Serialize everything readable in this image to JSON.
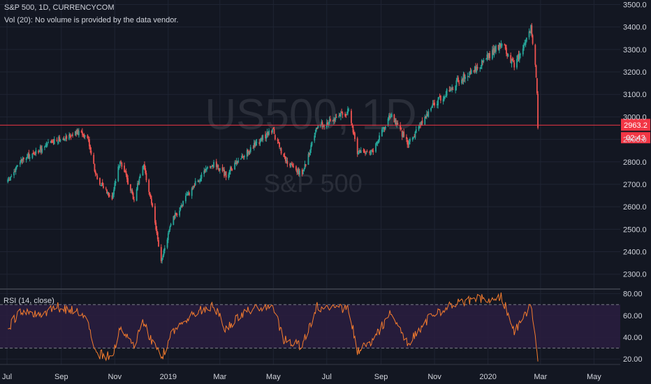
{
  "colors": {
    "background": "#131722",
    "grid": "#1f2433",
    "text": "#d1d4dc",
    "up": "#26a69a",
    "down": "#ef5350",
    "price_line": "#f23645",
    "rsi_line": "#f57c2e",
    "rsi_band": "#2a1d3f",
    "rsi_band_border": "#787b86",
    "watermark": "#2a2e39"
  },
  "header": {
    "title": "S&P 500, 1D, CURRENCYCOM",
    "volume_note": "Vol (20): No volume is provided by the data vendor."
  },
  "watermark": {
    "symbol": "US500, 1D",
    "name": "S&P 500"
  },
  "price_badge": {
    "value": "2963.2",
    "countdown": "02:43"
  },
  "rsi_panel": {
    "label": "RSI (14, close)"
  },
  "chart_data": [
    {
      "type": "candlestick",
      "title": "S&P 500, 1D, CURRENCYCOM",
      "ylim": [
        2240,
        3520
      ],
      "y_ticks": [
        "2300.0",
        "2400.0",
        "2500.0",
        "2600.0",
        "2700.0",
        "2800.0",
        "2900.0",
        "3000.0",
        "3100.0",
        "3200.0",
        "3300.0",
        "3400.0",
        "3500.0"
      ],
      "x_ticks": [
        "Jul",
        "Sep",
        "Nov",
        "2019",
        "Mar",
        "May",
        "Jul",
        "Sep",
        "Nov",
        "2020",
        "Mar",
        "May"
      ],
      "current_price": 2963.2,
      "series": [
        {
          "points": [
            [
              "2018-07-02",
              2710
            ],
            [
              "2018-07-16",
              2800
            ],
            [
              "2018-08-06",
              2850
            ],
            [
              "2018-08-27",
              2900
            ],
            [
              "2018-09-20",
              2930
            ],
            [
              "2018-10-01",
              2915
            ],
            [
              "2018-10-11",
              2730
            ],
            [
              "2018-10-29",
              2640
            ],
            [
              "2018-11-07",
              2810
            ],
            [
              "2018-11-23",
              2635
            ],
            [
              "2018-12-03",
              2790
            ],
            [
              "2018-12-14",
              2600
            ],
            [
              "2018-12-24",
              2350
            ],
            [
              "2019-01-04",
              2530
            ],
            [
              "2019-01-31",
              2700
            ],
            [
              "2019-02-22",
              2795
            ],
            [
              "2019-03-08",
              2740
            ],
            [
              "2019-03-29",
              2835
            ],
            [
              "2019-04-30",
              2945
            ],
            [
              "2019-05-13",
              2810
            ],
            [
              "2019-06-03",
              2745
            ],
            [
              "2019-06-20",
              2955
            ],
            [
              "2019-07-26",
              3025
            ],
            [
              "2019-08-05",
              2845
            ],
            [
              "2019-08-23",
              2850
            ],
            [
              "2019-09-12",
              3010
            ],
            [
              "2019-10-02",
              2880
            ],
            [
              "2019-10-28",
              3040
            ],
            [
              "2019-11-27",
              3155
            ],
            [
              "2019-12-20",
              3220
            ],
            [
              "2020-01-17",
              3330
            ],
            [
              "2020-01-31",
              3225
            ],
            [
              "2020-02-19",
              3395
            ],
            [
              "2020-02-24",
              3225
            ],
            [
              "2020-02-26",
              3115
            ],
            [
              "2020-02-27",
              2963
            ]
          ]
        }
      ]
    },
    {
      "type": "line",
      "title": "RSI (14, close)",
      "ylim": [
        15,
        83
      ],
      "y_ticks": [
        "20.00",
        "40.00",
        "60.00",
        "80.00"
      ],
      "bands": [
        30,
        70
      ],
      "series": [
        {
          "points": [
            [
              "2018-07-02",
              47
            ],
            [
              "2018-07-16",
              65
            ],
            [
              "2018-08-06",
              60
            ],
            [
              "2018-08-27",
              68
            ],
            [
              "2018-09-20",
              63
            ],
            [
              "2018-10-01",
              55
            ],
            [
              "2018-10-11",
              25
            ],
            [
              "2018-10-29",
              22
            ],
            [
              "2018-11-07",
              50
            ],
            [
              "2018-11-23",
              30
            ],
            [
              "2018-12-03",
              55
            ],
            [
              "2018-12-14",
              35
            ],
            [
              "2018-12-24",
              20
            ],
            [
              "2019-01-04",
              42
            ],
            [
              "2019-01-31",
              62
            ],
            [
              "2019-02-22",
              70
            ],
            [
              "2019-03-08",
              47
            ],
            [
              "2019-03-29",
              64
            ],
            [
              "2019-04-30",
              70
            ],
            [
              "2019-05-13",
              38
            ],
            [
              "2019-06-03",
              32
            ],
            [
              "2019-06-20",
              68
            ],
            [
              "2019-07-26",
              66
            ],
            [
              "2019-08-05",
              28
            ],
            [
              "2019-08-23",
              38
            ],
            [
              "2019-09-12",
              62
            ],
            [
              "2019-10-02",
              35
            ],
            [
              "2019-10-28",
              60
            ],
            [
              "2019-11-27",
              72
            ],
            [
              "2019-12-20",
              75
            ],
            [
              "2020-01-17",
              77
            ],
            [
              "2020-01-31",
              45
            ],
            [
              "2020-02-19",
              68
            ],
            [
              "2020-02-24",
              38
            ],
            [
              "2020-02-26",
              28
            ],
            [
              "2020-02-27",
              19
            ]
          ]
        }
      ]
    }
  ]
}
